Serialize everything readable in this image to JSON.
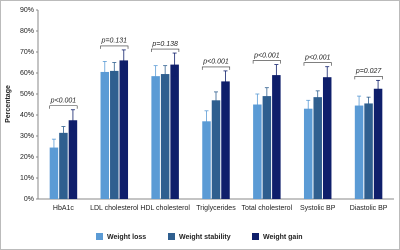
{
  "chart_data": {
    "type": "bar",
    "ylabel": "Percentage",
    "categories": [
      "HbA1c",
      "LDL cholesterol",
      "HDL cholesterol",
      "Triglycerides",
      "Total cholesterol",
      "Systolic BP",
      "Diastolic BP"
    ],
    "p_values": [
      "p<0.001",
      "p=0.131",
      "p=0.138",
      "p<0.001",
      "p<0.001",
      "p<0.001",
      "p=0.027"
    ],
    "series": [
      {
        "name": "Weight loss",
        "color": "#5b9bd5",
        "values": [
          24.5,
          60.5,
          58.5,
          37,
          45,
          43,
          44.5
        ],
        "errors": [
          4,
          5,
          5,
          5,
          5,
          4,
          4.5
        ]
      },
      {
        "name": "Weight stability",
        "color": "#2f5f8f",
        "values": [
          31.5,
          61,
          59.5,
          47,
          49,
          48.5,
          45.5
        ],
        "errors": [
          3,
          4,
          4,
          4,
          4,
          3,
          3
        ]
      },
      {
        "name": "Weight gain",
        "color": "#0f1f6b",
        "values": [
          37.5,
          66,
          64,
          56,
          59,
          58,
          52.5
        ],
        "errors": [
          5,
          5,
          5.5,
          5,
          5,
          5,
          4
        ]
      }
    ],
    "ylim": [
      0,
      90
    ],
    "yticks": [
      {
        "value": 0,
        "label": "0%"
      },
      {
        "value": 10,
        "label": "10%"
      },
      {
        "value": 20,
        "label": "20%"
      },
      {
        "value": 30,
        "label": "30%"
      },
      {
        "value": 40,
        "label": "40%"
      },
      {
        "value": 50,
        "label": "50%"
      },
      {
        "value": 60,
        "label": "60%"
      },
      {
        "value": 70,
        "label": "70%"
      },
      {
        "value": 80,
        "label": "80%"
      },
      {
        "value": 90,
        "label": "90%"
      }
    ],
    "legend": "bottom"
  }
}
